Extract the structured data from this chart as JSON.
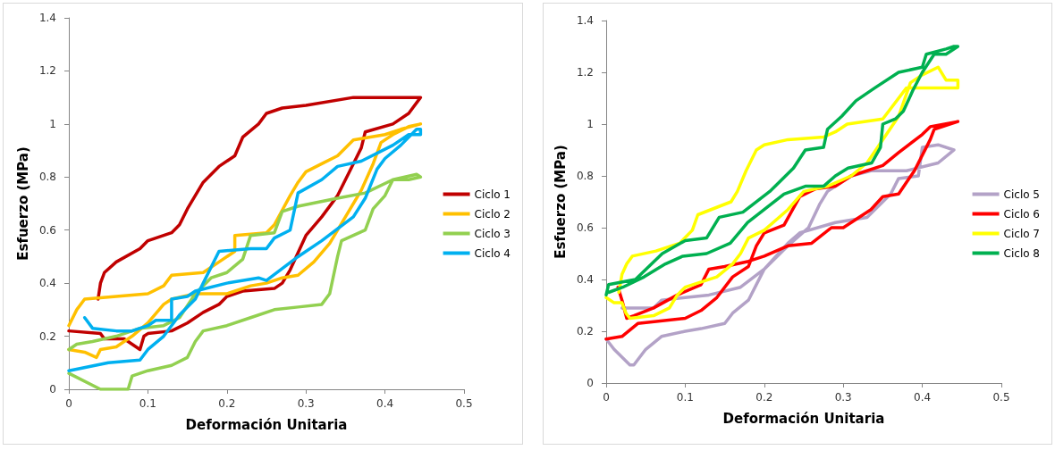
{
  "chart_data": [
    {
      "type": "line",
      "xlabel": "Deformación Unitaria",
      "ylabel": "Esfuerzo (MPa)",
      "xlim": [
        0,
        0.5
      ],
      "xticks": [
        0,
        0.1,
        0.2,
        0.3,
        0.4,
        0.5
      ],
      "ylim": [
        0,
        1.4
      ],
      "yticks": [
        0,
        0.2,
        0.4,
        0.6,
        0.8,
        1,
        1.2,
        1.4
      ],
      "grid": false,
      "legend": "right",
      "series": [
        {
          "name": "Ciclo 1",
          "color": "#c00000",
          "x": [
            0,
            0.04,
            0.045,
            0.07,
            0.08,
            0.09,
            0.095,
            0.1,
            0.13,
            0.15,
            0.17,
            0.19,
            0.2,
            0.22,
            0.26,
            0.27,
            0.28,
            0.3,
            0.32,
            0.34,
            0.36,
            0.37,
            0.375,
            0.41,
            0.43,
            0.445,
            0.42,
            0.36,
            0.3,
            0.27,
            0.25,
            0.24,
            0.22,
            0.21,
            0.19,
            0.17,
            0.15,
            0.14,
            0.13,
            0.1,
            0.09,
            0.06,
            0.045,
            0.04,
            0.037
          ],
          "values": [
            0.22,
            0.21,
            0.19,
            0.19,
            0.17,
            0.15,
            0.2,
            0.21,
            0.22,
            0.25,
            0.29,
            0.32,
            0.35,
            0.37,
            0.38,
            0.4,
            0.45,
            0.58,
            0.65,
            0.73,
            0.85,
            0.91,
            0.97,
            1.0,
            1.04,
            1.1,
            1.1,
            1.1,
            1.07,
            1.06,
            1.04,
            1.0,
            0.95,
            0.88,
            0.84,
            0.78,
            0.68,
            0.62,
            0.59,
            0.56,
            0.53,
            0.48,
            0.44,
            0.4,
            0.34
          ]
        },
        {
          "name": "Ciclo 2",
          "color": "#ffc000",
          "x": [
            0,
            0.01,
            0.02,
            0.1,
            0.12,
            0.13,
            0.17,
            0.19,
            0.21,
            0.21,
            0.25,
            0.26,
            0.28,
            0.29,
            0.3,
            0.32,
            0.34,
            0.36,
            0.4,
            0.42,
            0.445,
            0.43,
            0.41,
            0.395,
            0.385,
            0.37,
            0.35,
            0.33,
            0.31,
            0.29,
            0.27,
            0.25,
            0.23,
            0.2,
            0.16,
            0.13,
            0.12,
            0.1,
            0.08,
            0.06,
            0.04,
            0.035,
            0.02,
            0
          ],
          "values": [
            0.24,
            0.3,
            0.34,
            0.36,
            0.39,
            0.43,
            0.44,
            0.48,
            0.52,
            0.58,
            0.59,
            0.62,
            0.73,
            0.78,
            0.82,
            0.85,
            0.88,
            0.94,
            0.96,
            0.98,
            1.0,
            0.99,
            0.96,
            0.93,
            0.85,
            0.75,
            0.65,
            0.55,
            0.48,
            0.43,
            0.42,
            0.4,
            0.39,
            0.36,
            0.36,
            0.34,
            0.32,
            0.25,
            0.2,
            0.16,
            0.15,
            0.12,
            0.14,
            0.15
          ]
        },
        {
          "name": "Ciclo 3",
          "color": "#92d050",
          "x": [
            0,
            0.04,
            0.075,
            0.08,
            0.1,
            0.13,
            0.15,
            0.16,
            0.17,
            0.2,
            0.23,
            0.26,
            0.29,
            0.32,
            0.33,
            0.34,
            0.345,
            0.375,
            0.385,
            0.4,
            0.41,
            0.44,
            0.445,
            0.43,
            0.41,
            0.375,
            0.34,
            0.29,
            0.27,
            0.26,
            0.23,
            0.22,
            0.2,
            0.18,
            0.16,
            0.14,
            0.12,
            0.09,
            0.06,
            0.03,
            0.01,
            0
          ],
          "values": [
            0.06,
            0.0,
            0.0,
            0.05,
            0.07,
            0.09,
            0.12,
            0.18,
            0.22,
            0.24,
            0.27,
            0.3,
            0.31,
            0.32,
            0.36,
            0.5,
            0.56,
            0.6,
            0.68,
            0.73,
            0.79,
            0.81,
            0.8,
            0.79,
            0.79,
            0.74,
            0.72,
            0.69,
            0.67,
            0.59,
            0.58,
            0.49,
            0.44,
            0.42,
            0.36,
            0.27,
            0.24,
            0.23,
            0.2,
            0.18,
            0.17,
            0.15
          ]
        },
        {
          "name": "Ciclo 4",
          "color": "#00b0f0",
          "x": [
            0.02,
            0.03,
            0.06,
            0.08,
            0.1,
            0.11,
            0.13,
            0.13,
            0.15,
            0.16,
            0.2,
            0.24,
            0.25,
            0.29,
            0.32,
            0.36,
            0.375,
            0.39,
            0.4,
            0.42,
            0.44,
            0.445,
            0.445,
            0.43,
            0.41,
            0.37,
            0.34,
            0.32,
            0.29,
            0.28,
            0.26,
            0.25,
            0.23,
            0.19,
            0.18,
            0.17,
            0.16,
            0.14,
            0.12,
            0.1,
            0.09,
            0.05,
            0
          ],
          "values": [
            0.27,
            0.23,
            0.22,
            0.22,
            0.24,
            0.26,
            0.26,
            0.34,
            0.35,
            0.37,
            0.4,
            0.42,
            0.41,
            0.5,
            0.56,
            0.65,
            0.72,
            0.83,
            0.87,
            0.92,
            0.98,
            0.98,
            0.96,
            0.96,
            0.92,
            0.86,
            0.84,
            0.79,
            0.74,
            0.6,
            0.57,
            0.53,
            0.53,
            0.52,
            0.46,
            0.4,
            0.34,
            0.28,
            0.2,
            0.15,
            0.11,
            0.1,
            0.07
          ]
        }
      ]
    },
    {
      "type": "line",
      "xlabel": "Deformación Unitaria",
      "ylabel": "Esfuerzo (MPa)",
      "xlim": [
        0,
        0.5
      ],
      "xticks": [
        0,
        0.1,
        0.2,
        0.3,
        0.4,
        0.5
      ],
      "ylim": [
        0,
        1.4
      ],
      "yticks": [
        0,
        0.2,
        0.4,
        0.6,
        0.8,
        1,
        1.2,
        1.4
      ],
      "grid": false,
      "legend": "right",
      "series": [
        {
          "name": "Ciclo 5",
          "color": "#b3a2c7",
          "x": [
            0,
            0.01,
            0.03,
            0.035,
            0.05,
            0.07,
            0.1,
            0.12,
            0.15,
            0.16,
            0.18,
            0.2,
            0.23,
            0.245,
            0.29,
            0.33,
            0.36,
            0.37,
            0.395,
            0.4,
            0.42,
            0.44,
            0.436,
            0.42,
            0.38,
            0.335,
            0.31,
            0.28,
            0.27,
            0.256,
            0.23,
            0.2,
            0.17,
            0.13,
            0.1,
            0.07,
            0.06,
            0.02
          ],
          "values": [
            0.17,
            0.13,
            0.07,
            0.07,
            0.13,
            0.18,
            0.2,
            0.21,
            0.23,
            0.27,
            0.32,
            0.44,
            0.54,
            0.58,
            0.62,
            0.64,
            0.73,
            0.79,
            0.8,
            0.91,
            0.92,
            0.9,
            0.89,
            0.85,
            0.82,
            0.82,
            0.8,
            0.74,
            0.69,
            0.6,
            0.53,
            0.44,
            0.37,
            0.34,
            0.33,
            0.32,
            0.29,
            0.29
          ]
        },
        {
          "name": "Ciclo 6",
          "color": "#ff0000",
          "x": [
            0,
            0.02,
            0.04,
            0.1,
            0.12,
            0.14,
            0.16,
            0.18,
            0.19,
            0.2,
            0.225,
            0.245,
            0.265,
            0.29,
            0.31,
            0.35,
            0.37,
            0.4,
            0.41,
            0.445,
            0.415,
            0.41,
            0.39,
            0.37,
            0.35,
            0.335,
            0.3,
            0.285,
            0.26,
            0.23,
            0.2,
            0.18,
            0.15,
            0.13,
            0.12,
            0.09,
            0.06,
            0.035,
            0.026,
            0.02,
            0.015
          ],
          "values": [
            0.17,
            0.18,
            0.23,
            0.25,
            0.28,
            0.33,
            0.41,
            0.45,
            0.53,
            0.58,
            0.61,
            0.72,
            0.75,
            0.76,
            0.8,
            0.84,
            0.89,
            0.96,
            0.99,
            1.01,
            0.98,
            0.94,
            0.82,
            0.73,
            0.72,
            0.67,
            0.6,
            0.6,
            0.54,
            0.53,
            0.49,
            0.47,
            0.45,
            0.44,
            0.38,
            0.34,
            0.29,
            0.26,
            0.25,
            0.32,
            0.37
          ]
        },
        {
          "name": "Ciclo 7",
          "color": "#ffff00",
          "x": [
            0,
            0.01,
            0.02,
            0.025,
            0.03,
            0.06,
            0.08,
            0.09,
            0.1,
            0.12,
            0.14,
            0.16,
            0.17,
            0.18,
            0.2,
            0.23,
            0.25,
            0.28,
            0.31,
            0.33,
            0.35,
            0.37,
            0.385,
            0.4,
            0.42,
            0.43,
            0.445,
            0.445,
            0.38,
            0.35,
            0.305,
            0.29,
            0.275,
            0.23,
            0.2,
            0.19,
            0.177,
            0.166,
            0.158,
            0.116,
            0.109,
            0.093,
            0.063,
            0.033,
            0.026,
            0.02,
            0.016
          ],
          "values": [
            0.33,
            0.31,
            0.31,
            0.27,
            0.25,
            0.26,
            0.29,
            0.34,
            0.37,
            0.39,
            0.41,
            0.46,
            0.5,
            0.56,
            0.59,
            0.67,
            0.74,
            0.76,
            0.8,
            0.85,
            0.94,
            1.03,
            1.16,
            1.19,
            1.22,
            1.17,
            1.17,
            1.14,
            1.14,
            1.02,
            1.0,
            0.97,
            0.95,
            0.94,
            0.92,
            0.9,
            0.82,
            0.74,
            0.7,
            0.65,
            0.59,
            0.54,
            0.51,
            0.49,
            0.46,
            0.42,
            0.35
          ]
        },
        {
          "name": "Ciclo 8",
          "color": "#00b050",
          "x": [
            0,
            0.003,
            0.037,
            0.071,
            0.1,
            0.127,
            0.143,
            0.173,
            0.207,
            0.237,
            0.252,
            0.275,
            0.28,
            0.298,
            0.316,
            0.34,
            0.37,
            0.4,
            0.405,
            0.43,
            0.44,
            0.445,
            0.43,
            0.415,
            0.4,
            0.388,
            0.376,
            0.366,
            0.35,
            0.347,
            0.336,
            0.306,
            0.29,
            0.275,
            0.252,
            0.225,
            0.2,
            0.179,
            0.157,
            0.127,
            0.097,
            0.075,
            0.048,
            0.021,
            0.003
          ],
          "values": [
            0.34,
            0.38,
            0.4,
            0.5,
            0.55,
            0.56,
            0.64,
            0.66,
            0.74,
            0.83,
            0.9,
            0.91,
            0.98,
            1.03,
            1.09,
            1.14,
            1.2,
            1.22,
            1.27,
            1.29,
            1.3,
            1.3,
            1.27,
            1.27,
            1.2,
            1.13,
            1.05,
            1.02,
            1.0,
            0.91,
            0.85,
            0.83,
            0.8,
            0.76,
            0.76,
            0.73,
            0.67,
            0.62,
            0.54,
            0.5,
            0.49,
            0.46,
            0.41,
            0.37,
            0.35
          ]
        }
      ]
    }
  ]
}
